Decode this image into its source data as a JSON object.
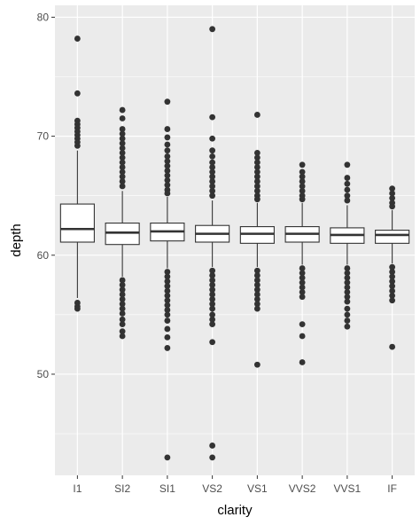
{
  "chart_data": {
    "type": "boxplot",
    "xlabel": "clarity",
    "ylabel": "depth",
    "ylim": [
      41.5,
      81
    ],
    "y_ticks": [
      50,
      60,
      70,
      80
    ],
    "y_minor_ticks": [
      45,
      55,
      65,
      75
    ],
    "grid": true,
    "categories": [
      "I1",
      "SI2",
      "SI1",
      "VS2",
      "VS1",
      "VVS2",
      "VVS1",
      "IF"
    ],
    "boxes": [
      {
        "q1": 61.1,
        "median": 62.2,
        "q3": 64.3,
        "whisker_low": 56.4,
        "whisker_high": 68.8,
        "outliers": [
          78.2,
          73.6,
          71.3,
          71.0,
          70.7,
          70.4,
          70.1,
          69.8,
          69.5,
          69.2,
          56.0,
          55.7,
          55.5
        ]
      },
      {
        "q1": 60.9,
        "median": 61.9,
        "q3": 62.7,
        "whisker_low": 58.2,
        "whisker_high": 65.4,
        "outliers": [
          72.2,
          71.5,
          70.6,
          70.2,
          69.8,
          69.4,
          69.0,
          68.6,
          68.2,
          67.8,
          67.4,
          67.0,
          66.6,
          66.2,
          65.8,
          57.9,
          57.5,
          57.1,
          56.7,
          56.3,
          55.9,
          55.5,
          55.1,
          54.6,
          54.2,
          53.6,
          53.2
        ]
      },
      {
        "q1": 61.2,
        "median": 62.0,
        "q3": 62.7,
        "whisker_low": 58.9,
        "whisker_high": 64.9,
        "outliers": [
          72.9,
          70.6,
          69.9,
          69.3,
          68.8,
          68.3,
          67.9,
          67.5,
          67.1,
          66.7,
          66.3,
          65.9,
          65.5,
          65.2,
          58.6,
          58.2,
          57.8,
          57.4,
          57.0,
          56.6,
          56.2,
          55.8,
          55.4,
          55.0,
          54.5,
          53.8,
          53.1,
          52.2,
          43.0
        ]
      },
      {
        "q1": 61.1,
        "median": 61.8,
        "q3": 62.5,
        "whisker_low": 59.0,
        "whisker_high": 64.6,
        "outliers": [
          79.0,
          71.6,
          69.8,
          68.8,
          68.3,
          67.8,
          67.4,
          67.0,
          66.6,
          66.2,
          65.8,
          65.4,
          65.0,
          58.7,
          58.3,
          57.9,
          57.5,
          57.1,
          56.7,
          56.3,
          55.9,
          55.5,
          55.0,
          54.6,
          54.2,
          52.7,
          44.0,
          43.0
        ]
      },
      {
        "q1": 61.0,
        "median": 61.8,
        "q3": 62.4,
        "whisker_low": 59.0,
        "whisker_high": 64.4,
        "outliers": [
          71.8,
          68.6,
          68.2,
          67.8,
          67.4,
          67.0,
          66.6,
          66.2,
          65.8,
          65.4,
          65.0,
          64.7,
          58.7,
          58.3,
          57.9,
          57.5,
          57.1,
          56.7,
          56.3,
          55.9,
          55.5,
          50.8
        ]
      },
      {
        "q1": 61.1,
        "median": 61.8,
        "q3": 62.4,
        "whisker_low": 59.2,
        "whisker_high": 64.4,
        "outliers": [
          67.6,
          67.0,
          66.6,
          66.2,
          65.8,
          65.4,
          65.0,
          64.7,
          58.9,
          58.5,
          58.1,
          57.7,
          57.3,
          56.9,
          56.5,
          54.2,
          53.2,
          51.0
        ]
      },
      {
        "q1": 61.0,
        "median": 61.7,
        "q3": 62.3,
        "whisker_low": 59.2,
        "whisker_high": 64.2,
        "outliers": [
          67.6,
          66.5,
          66.0,
          65.5,
          65.0,
          64.6,
          58.9,
          58.5,
          58.1,
          57.7,
          57.3,
          56.9,
          56.5,
          56.1,
          55.5,
          55.0,
          54.5,
          54.0
        ]
      },
      {
        "q1": 61.0,
        "median": 61.7,
        "q3": 62.1,
        "whisker_low": 59.3,
        "whisker_high": 63.8,
        "outliers": [
          65.6,
          65.2,
          64.8,
          64.4,
          64.1,
          59.0,
          58.6,
          58.2,
          57.8,
          57.4,
          57.0,
          56.6,
          56.2,
          52.3
        ]
      }
    ]
  }
}
